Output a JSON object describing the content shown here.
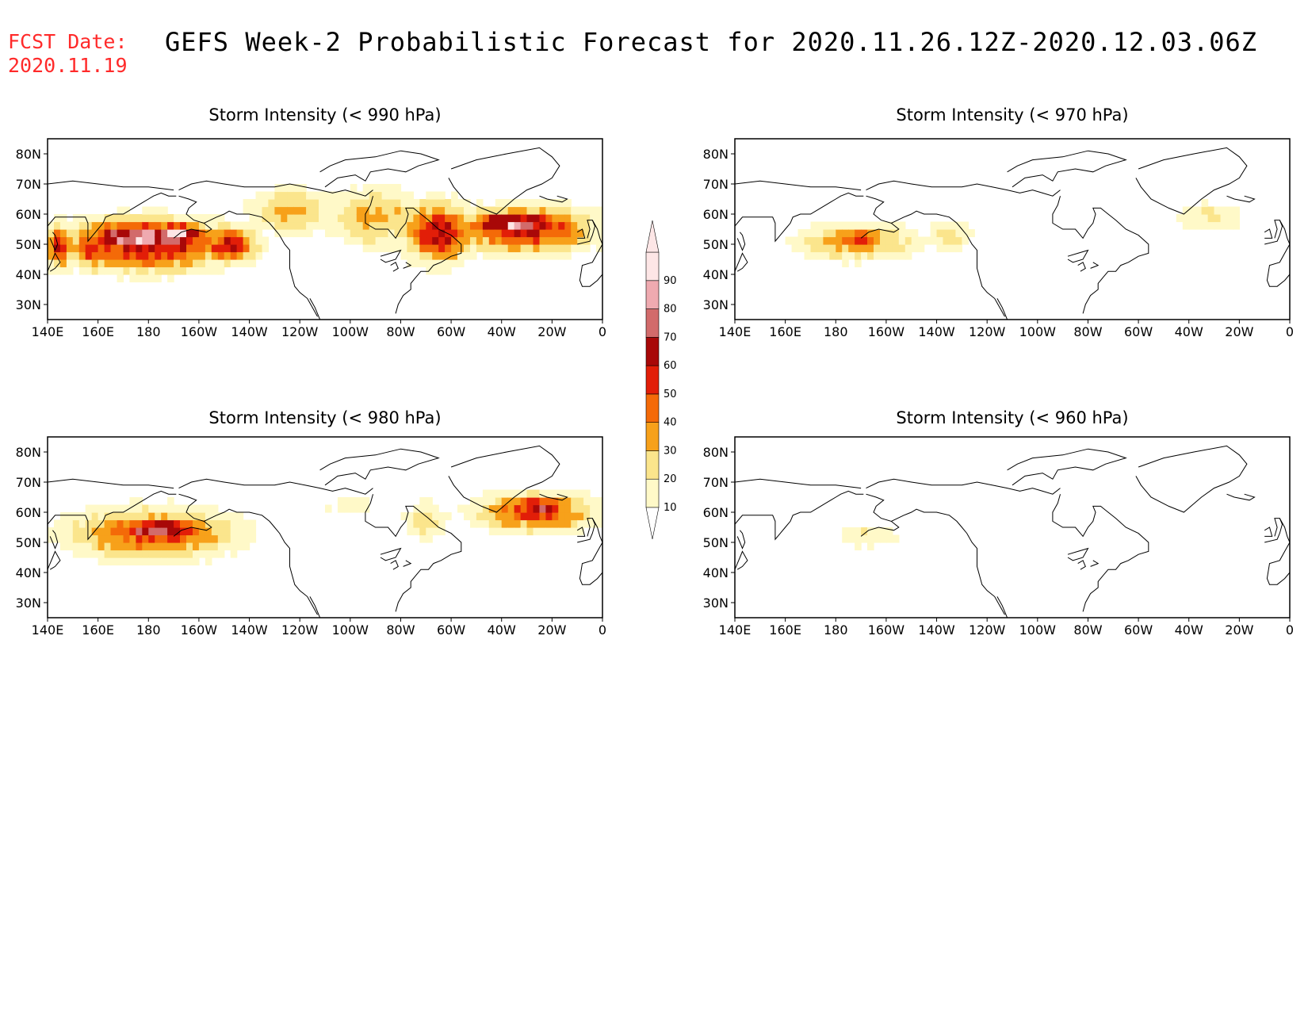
{
  "header": {
    "fcst_label": "FCST Date:",
    "fcst_date": "2020.11.19",
    "title": "GEFS Week-2 Probabilistic Forecast for 2020.11.26.12Z-2020.12.03.06Z",
    "fcst_color": "#ff2a2a"
  },
  "axes": {
    "x_ticks": [
      "140E",
      "160E",
      "180",
      "160W",
      "140W",
      "120W",
      "100W",
      "80W",
      "60W",
      "40W",
      "20W",
      "0"
    ],
    "y_ticks": [
      "80N",
      "70N",
      "60N",
      "50N",
      "40N",
      "30N"
    ],
    "lon_range": [
      140,
      360
    ],
    "lat_range": [
      25,
      85
    ]
  },
  "colorbar": {
    "levels": [
      10,
      20,
      30,
      40,
      50,
      60,
      70,
      80,
      90
    ],
    "labels": [
      "10",
      "20",
      "30",
      "40",
      "50",
      "60",
      "70",
      "80",
      "90"
    ],
    "colors": [
      "#fff9c8",
      "#fbe58c",
      "#f7a11a",
      "#f46a08",
      "#e21e08",
      "#a80808",
      "#d26b6b",
      "#efaab0",
      "#fde6e6"
    ]
  },
  "panels": [
    {
      "title": "Storm Intensity (< 990 hPa)",
      "blobs": [
        {
          "lon": 145,
          "lat": 49,
          "rlon": 5,
          "rlat": 7,
          "p": 60
        },
        {
          "lon": 158,
          "lat": 49,
          "rlon": 8,
          "rlat": 7,
          "p": 55
        },
        {
          "lon": 180,
          "lat": 50,
          "rlon": 30,
          "rlat": 8,
          "p": 65
        },
        {
          "lon": 178,
          "lat": 52,
          "rlon": 24,
          "rlat": 6,
          "p": 82
        },
        {
          "lon": 190,
          "lat": 53,
          "rlon": 13,
          "rlat": 4,
          "p": 92
        },
        {
          "lon": 212,
          "lat": 50,
          "rlon": 11,
          "rlat": 6,
          "p": 58
        },
        {
          "lon": 237,
          "lat": 61,
          "rlon": 16,
          "rlat": 7,
          "p": 35
        },
        {
          "lon": 270,
          "lat": 59,
          "rlon": 18,
          "rlat": 9,
          "p": 35
        },
        {
          "lon": 295,
          "lat": 54,
          "rlon": 13,
          "rlat": 9,
          "p": 65
        },
        {
          "lon": 330,
          "lat": 55,
          "rlon": 25,
          "rlat": 7,
          "p": 62
        },
        {
          "lon": 325,
          "lat": 57,
          "rlon": 18,
          "rlat": 4,
          "p": 82
        }
      ]
    },
    {
      "title": "Storm Intensity (< 970 hPa)",
      "blobs": [
        {
          "lon": 188,
          "lat": 51,
          "rlon": 22,
          "rlat": 6,
          "p": 38
        },
        {
          "lon": 190,
          "lat": 52,
          "rlon": 12,
          "rlat": 3,
          "p": 55
        },
        {
          "lon": 225,
          "lat": 53,
          "rlon": 9,
          "rlat": 5,
          "p": 25
        },
        {
          "lon": 328,
          "lat": 59,
          "rlon": 13,
          "rlat": 5,
          "p": 22
        }
      ]
    },
    {
      "title": "Storm Intensity (< 980 hPa)",
      "blobs": [
        {
          "lon": 181,
          "lat": 53,
          "rlon": 32,
          "rlat": 8,
          "p": 48
        },
        {
          "lon": 185,
          "lat": 54,
          "rlon": 18,
          "rlat": 4,
          "p": 78
        },
        {
          "lon": 260,
          "lat": 62,
          "rlon": 20,
          "rlat": 6,
          "p": 12
        },
        {
          "lon": 290,
          "lat": 57,
          "rlon": 9,
          "rlat": 7,
          "p": 25
        },
        {
          "lon": 333,
          "lat": 60,
          "rlon": 22,
          "rlat": 6,
          "p": 52
        },
        {
          "lon": 335,
          "lat": 62,
          "rlon": 11,
          "rlat": 4,
          "p": 66
        }
      ]
    },
    {
      "title": "Storm Intensity (< 960 hPa)",
      "blobs": [
        {
          "lon": 193,
          "lat": 52,
          "rlon": 14,
          "rlat": 4,
          "p": 18
        },
        {
          "lon": 191,
          "lat": 53,
          "rlon": 5,
          "rlat": 2,
          "p": 26
        }
      ]
    }
  ]
}
